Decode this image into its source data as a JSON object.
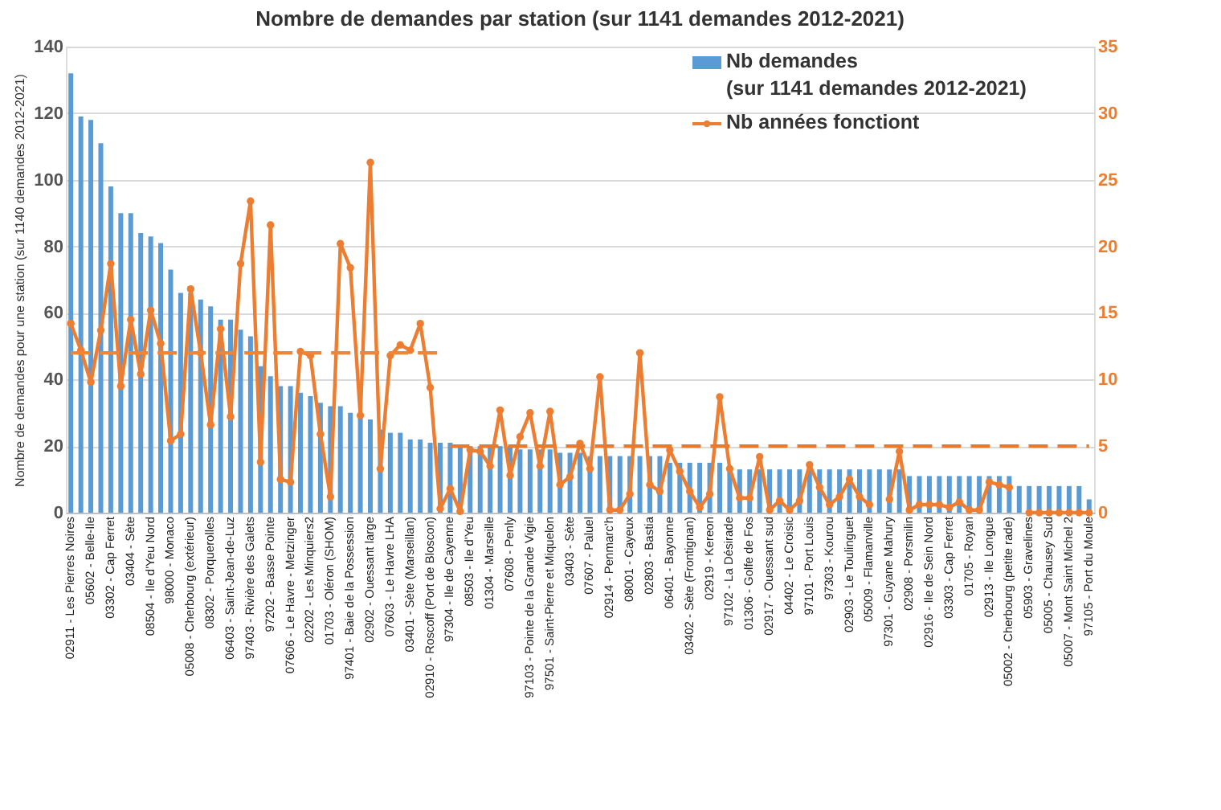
{
  "chart_data": {
    "type": "bar",
    "title": "Nombre de demandes par station (sur 1141 demandes 2012-2021)",
    "ylabel": "Nombre de demandes pour une station (sur 1140 demandes 2012-2021)",
    "categories": [
      "02911 - Les Pierres Noires",
      null,
      "05602 - Belle-Ile",
      null,
      "03302 - Cap Ferret",
      null,
      "03404 - Sète",
      null,
      "08504 - Ile d'Yeu Nord",
      null,
      "98000 - Monaco",
      null,
      "05008 - Cherbourg (extérieur)",
      null,
      "08302 - Porquerolles",
      null,
      "06403 - Saint-Jean-de-Luz",
      null,
      "97403 - Rivière des Galets",
      null,
      "97202 - Basse Pointe",
      null,
      "07606 - Le Havre - Metzinger",
      null,
      "02202 - Les Minquiers2",
      null,
      "01703 - Oléron (SHOM)",
      null,
      "97401 - Baie de la Possession",
      null,
      "02902 - Ouessant large",
      null,
      "07603 - Le Havre LHA",
      null,
      "03401 - Sète (Marseillan)",
      null,
      "02910 - Roscoff (Port de Bloscon)",
      null,
      "97304 - Ile de Cayenne",
      null,
      "08503 - Ile d'Yeu",
      null,
      "01304 - Marseille",
      null,
      "07608 - Penly",
      null,
      "97103 - Pointe de la Grande Vigie",
      null,
      "97501 - Saint-Pierre et Miquelon",
      null,
      "03403 - Sète",
      null,
      "07607 - Paluel",
      null,
      "02914 - Penmarc'h",
      null,
      "08001 - Cayeux",
      null,
      "02803 - Bastia",
      null,
      "06401 - Bayonne",
      null,
      "03402 - Sète (Frontignan)",
      null,
      "02919 - Kereon",
      null,
      "97102 - La Désirade",
      null,
      "01306 - Golfe de Fos",
      null,
      "02917 - Ouessant sud",
      null,
      "04402 - Le Croisic",
      null,
      "97101 - Port Louis",
      null,
      "97303 - Kourou",
      null,
      "02903 - Le Toulinguet",
      null,
      "05009 - Flamanville",
      null,
      "97301 - Guyane Mahury",
      null,
      "02908 - Porsmilin",
      null,
      "02916 - Ile de Sein Nord",
      null,
      "03303 - Cap Ferret",
      null,
      "01705 - Royan",
      null,
      "02913 - Ile Longue",
      null,
      "05002 - Cherbourg (petite rade)",
      null,
      "05903 - Gravelines",
      null,
      "05005 - Chausey Sud",
      null,
      "05007 - Mont Saint Michel 2",
      null,
      "97105 - Port du Moule"
    ],
    "series": [
      {
        "name": "Nb demandes\n(sur 1141 demandes 2012-2021)",
        "color": "#5b9bd5",
        "values": [
          132,
          119,
          118,
          111,
          98,
          90,
          90,
          84,
          83,
          81,
          73,
          66,
          66,
          64,
          62,
          58,
          58,
          55,
          53,
          44,
          41,
          38,
          38,
          36,
          35,
          33,
          32,
          32,
          30,
          29,
          28,
          25,
          24,
          24,
          22,
          22,
          21,
          21,
          21,
          20,
          20,
          20,
          20,
          20,
          20,
          19,
          19,
          19,
          19,
          18,
          18,
          18,
          17,
          17,
          17,
          17,
          17,
          17,
          17,
          17,
          15,
          15,
          15,
          15,
          15,
          15,
          13,
          13,
          13,
          13,
          13,
          13,
          13,
          13,
          13,
          13,
          13,
          13,
          13,
          13,
          13,
          13,
          13,
          13,
          11,
          11,
          11,
          11,
          11,
          11,
          11,
          11,
          11,
          11,
          11,
          8,
          8,
          8,
          8,
          8,
          8,
          8,
          4
        ]
      },
      {
        "name": "Nb années fonctiont",
        "type": "line",
        "axis": "y2",
        "color": "#ed7d31",
        "marker": "circle",
        "line_style": "solid",
        "values": [
          14.2,
          12.2,
          9.8,
          13.7,
          18.7,
          9.5,
          14.5,
          10.4,
          15.2,
          12.7,
          5.4,
          5.9,
          16.8,
          12.0,
          6.6,
          13.8,
          7.2,
          18.7,
          23.4,
          3.8,
          21.6,
          2.5,
          2.3,
          12.1,
          11.8,
          5.9,
          1.2,
          20.2,
          18.4,
          7.3,
          26.3,
          3.3,
          11.8,
          12.6,
          12.2,
          14.2,
          9.4,
          0.3,
          1.8,
          0.1,
          4.7,
          4.6,
          3.5,
          7.7,
          2.8,
          5.7,
          7.5,
          3.5,
          7.6,
          2.1,
          2.7,
          5.2,
          3.3,
          10.2,
          0.2,
          0.2,
          1.4,
          12.0,
          2.1,
          1.6,
          4.7,
          3.1,
          1.6,
          0.4,
          1.4,
          8.7,
          3.3,
          1.1,
          1.1,
          4.2,
          0.2,
          0.9,
          0.2,
          0.9,
          3.6,
          1.9,
          0.6,
          1.2,
          2.5,
          1.2,
          0.6,
          null,
          1.0,
          4.6,
          0.2,
          0.6,
          0.6,
          0.6,
          0.4,
          0.8,
          0.2,
          0.2,
          2.3,
          2.1,
          1.9,
          null,
          0,
          0,
          0,
          0,
          0,
          0,
          0
        ]
      },
      {
        "type": "line",
        "axis": "y2",
        "color": "#f08536",
        "marker": "none",
        "line_style": "dashed",
        "values": [
          12,
          12,
          12,
          12,
          12,
          12,
          12,
          12,
          12,
          12,
          12,
          12,
          12,
          12,
          12,
          12,
          12,
          12,
          12,
          12,
          12,
          12,
          12,
          12,
          12,
          12,
          12,
          12,
          12,
          12,
          12,
          12,
          12,
          12,
          12,
          12,
          12,
          12,
          null,
          null,
          null,
          null,
          null,
          null,
          null,
          null,
          null,
          null,
          null,
          null,
          null,
          null,
          null,
          null,
          null,
          null,
          null,
          null,
          null,
          null,
          null,
          null,
          null,
          null,
          null,
          null,
          null,
          null,
          null,
          null,
          null,
          null,
          null,
          null,
          null,
          null,
          null,
          null,
          null,
          null,
          null,
          null,
          null,
          null,
          null,
          null,
          null,
          null,
          null,
          null,
          null,
          null,
          null,
          null,
          null,
          null,
          null,
          null,
          null,
          null,
          null,
          null,
          null
        ]
      },
      {
        "type": "line",
        "axis": "y2",
        "color": "#e97a2c",
        "marker": "none",
        "line_style": "dashed",
        "values": [
          null,
          null,
          null,
          null,
          null,
          null,
          null,
          null,
          null,
          null,
          null,
          null,
          null,
          null,
          null,
          null,
          null,
          null,
          null,
          null,
          null,
          null,
          null,
          null,
          null,
          null,
          null,
          null,
          null,
          null,
          null,
          null,
          null,
          null,
          null,
          null,
          null,
          null,
          5,
          5,
          5,
          5,
          5,
          5,
          5,
          5,
          5,
          5,
          5,
          5,
          5,
          5,
          5,
          5,
          5,
          5,
          5,
          5,
          5,
          5,
          5,
          5,
          5,
          5,
          5,
          5,
          5,
          5,
          5,
          5,
          5,
          5,
          5,
          5,
          5,
          5,
          5,
          5,
          5,
          5,
          5,
          5,
          5,
          5,
          5,
          5,
          5,
          5,
          5,
          5,
          5,
          5,
          5,
          5,
          5,
          5,
          5,
          5,
          5,
          5,
          5,
          5,
          5
        ]
      }
    ],
    "ylim": [
      0,
      140
    ],
    "yticks": [
      0,
      20,
      40,
      60,
      80,
      100,
      120,
      140
    ],
    "y2lim": [
      0,
      35
    ],
    "y2ticks": [
      0,
      5,
      10,
      15,
      20,
      25,
      30,
      35
    ],
    "grid": "y",
    "legend": "top right"
  }
}
